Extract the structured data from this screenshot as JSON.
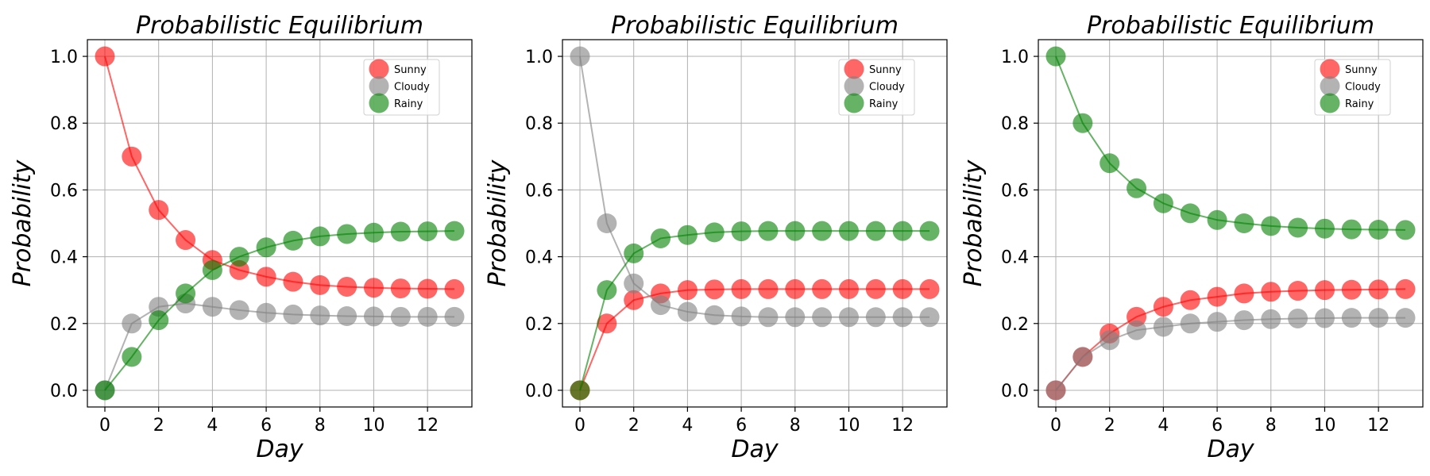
{
  "colors": {
    "Sunny": "#ff0000",
    "Cloudy": "#808080",
    "Rainy": "#008000",
    "grid": "#b0b0b0"
  },
  "chart_data": [
    {
      "type": "line",
      "title": "Probabilistic Equilibrium",
      "xlabel": "Day",
      "ylabel": "Probability",
      "x": [
        0,
        1,
        2,
        3,
        4,
        5,
        6,
        7,
        8,
        9,
        10,
        11,
        12,
        13
      ],
      "xticks": [
        0,
        2,
        4,
        6,
        8,
        10,
        12
      ],
      "yticks": [
        "0.0",
        "0.2",
        "0.4",
        "0.6",
        "0.8",
        "1.0"
      ],
      "xlim": [
        -0.65,
        13.65
      ],
      "ylim": [
        -0.05,
        1.05
      ],
      "grid": true,
      "legend_position": "top-right",
      "series": [
        {
          "name": "Sunny",
          "values": [
            1.0,
            0.7,
            0.54,
            0.45,
            0.39,
            0.36,
            0.34,
            0.325,
            0.315,
            0.31,
            0.307,
            0.305,
            0.304,
            0.303
          ]
        },
        {
          "name": "Cloudy",
          "values": [
            0.0,
            0.2,
            0.25,
            0.26,
            0.25,
            0.24,
            0.232,
            0.227,
            0.224,
            0.222,
            0.221,
            0.22,
            0.22,
            0.22
          ]
        },
        {
          "name": "Rainy",
          "values": [
            0.0,
            0.1,
            0.21,
            0.29,
            0.36,
            0.4,
            0.428,
            0.448,
            0.461,
            0.468,
            0.472,
            0.475,
            0.476,
            0.477
          ]
        }
      ]
    },
    {
      "type": "line",
      "title": "Probabilistic Equilibrium",
      "xlabel": "Day",
      "ylabel": "Probability",
      "x": [
        0,
        1,
        2,
        3,
        4,
        5,
        6,
        7,
        8,
        9,
        10,
        11,
        12,
        13
      ],
      "xticks": [
        0,
        2,
        4,
        6,
        8,
        10,
        12
      ],
      "yticks": [
        "0.0",
        "0.2",
        "0.4",
        "0.6",
        "0.8",
        "1.0"
      ],
      "xlim": [
        -0.65,
        13.65
      ],
      "ylim": [
        -0.05,
        1.05
      ],
      "grid": true,
      "legend_position": "top-right",
      "series": [
        {
          "name": "Sunny",
          "values": [
            0.0,
            0.2,
            0.27,
            0.29,
            0.3,
            0.302,
            0.303,
            0.303,
            0.303,
            0.303,
            0.303,
            0.303,
            0.303,
            0.303
          ]
        },
        {
          "name": "Cloudy",
          "values": [
            1.0,
            0.5,
            0.32,
            0.255,
            0.235,
            0.225,
            0.221,
            0.219,
            0.219,
            0.219,
            0.219,
            0.219,
            0.219,
            0.219
          ]
        },
        {
          "name": "Rainy",
          "values": [
            0.0,
            0.3,
            0.41,
            0.455,
            0.465,
            0.473,
            0.476,
            0.477,
            0.477,
            0.477,
            0.477,
            0.477,
            0.477,
            0.477
          ]
        }
      ]
    },
    {
      "type": "line",
      "title": "Probabilistic Equilibrium",
      "xlabel": "Day",
      "ylabel": "Probability",
      "x": [
        0,
        1,
        2,
        3,
        4,
        5,
        6,
        7,
        8,
        9,
        10,
        11,
        12,
        13
      ],
      "xticks": [
        0,
        2,
        4,
        6,
        8,
        10,
        12
      ],
      "yticks": [
        "0.0",
        "0.2",
        "0.4",
        "0.6",
        "0.8",
        "1.0"
      ],
      "xlim": [
        -0.65,
        13.65
      ],
      "ylim": [
        -0.05,
        1.05
      ],
      "grid": true,
      "legend_position": "top-right",
      "series": [
        {
          "name": "Sunny",
          "values": [
            0.0,
            0.1,
            0.17,
            0.22,
            0.25,
            0.27,
            0.28,
            0.29,
            0.295,
            0.298,
            0.3,
            0.301,
            0.302,
            0.303
          ]
        },
        {
          "name": "Cloudy",
          "values": [
            0.0,
            0.1,
            0.15,
            0.18,
            0.19,
            0.2,
            0.205,
            0.21,
            0.213,
            0.215,
            0.216,
            0.217,
            0.217,
            0.217
          ]
        },
        {
          "name": "Rainy",
          "values": [
            1.0,
            0.8,
            0.68,
            0.605,
            0.56,
            0.53,
            0.51,
            0.5,
            0.492,
            0.487,
            0.484,
            0.482,
            0.481,
            0.48
          ]
        }
      ]
    }
  ]
}
